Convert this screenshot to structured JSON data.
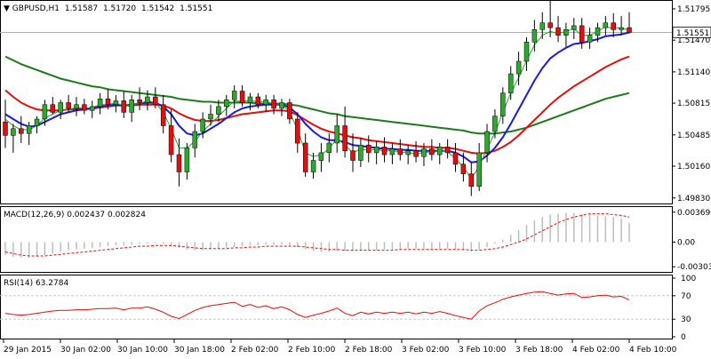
{
  "header": {
    "symbol": "GBPUSD,H1",
    "open": "1.51587",
    "high": "1.51720",
    "low": "1.51542",
    "close": "1.51551"
  },
  "price_tag": "1.51551",
  "macd_panel": {
    "title": "MACD(12,26,9) 0.002437 0.002824"
  },
  "rsi_panel": {
    "title": "RSI(14) 63.2784"
  },
  "colors": {
    "bull": "#2fa82f",
    "bear": "#e01010",
    "wick": "#000000",
    "ma_fast": "#1a1adc",
    "ma_mid": "#e01010",
    "ma_slow": "#1f7a1f",
    "ma_thin": "#27a327",
    "macd_hist": "#bdbdbd",
    "macd_signal": "#e01010",
    "rsi": "#e01010",
    "grid": "#c8c8c8"
  },
  "chart_data": [
    {
      "type": "candlestick",
      "title": "GBPUSD,H1",
      "ylim": [
        1.498,
        1.5185
      ],
      "y_ticks": [
        "1.51795",
        "1.51470",
        "1.51140",
        "1.50815",
        "1.50485",
        "1.50160",
        "1.49830"
      ],
      "x_ticks": [
        "29 Jan 2015",
        "30 Jan 02:00",
        "30 Jan 10:00",
        "30 Jan 18:00",
        "2 Feb 02:00",
        "2 Feb 10:00",
        "2 Feb 18:00",
        "3 Feb 02:00",
        "3 Feb 10:00",
        "3 Feb 18:00",
        "4 Feb 02:00",
        "4 Feb 10:00"
      ],
      "grid": false,
      "ohlc": [
        [
          1.5062,
          1.5085,
          1.5035,
          1.5048
        ],
        [
          1.5048,
          1.506,
          1.503,
          1.5055
        ],
        [
          1.5055,
          1.5068,
          1.504,
          1.505
        ],
        [
          1.505,
          1.5062,
          1.5038,
          1.5058
        ],
        [
          1.5058,
          1.5068,
          1.505,
          1.5065
        ],
        [
          1.5065,
          1.5085,
          1.5058,
          1.508
        ],
        [
          1.508,
          1.5088,
          1.507,
          1.5072
        ],
        [
          1.5072,
          1.5085,
          1.5065,
          1.5082
        ],
        [
          1.5082,
          1.509,
          1.5072,
          1.5076
        ],
        [
          1.5076,
          1.5088,
          1.5068,
          1.508
        ],
        [
          1.508,
          1.5086,
          1.507,
          1.5074
        ],
        [
          1.5074,
          1.5084,
          1.5066,
          1.5078
        ],
        [
          1.5078,
          1.5092,
          1.507,
          1.5086
        ],
        [
          1.5086,
          1.5096,
          1.5075,
          1.508
        ],
        [
          1.508,
          1.509,
          1.5072,
          1.5084
        ],
        [
          1.5084,
          1.5094,
          1.5066,
          1.5072
        ],
        [
          1.5072,
          1.509,
          1.5062,
          1.5085
        ],
        [
          1.5085,
          1.5098,
          1.5074,
          1.5082
        ],
        [
          1.5082,
          1.5095,
          1.5074,
          1.5088
        ],
        [
          1.5088,
          1.5098,
          1.5076,
          1.508
        ],
        [
          1.508,
          1.509,
          1.505,
          1.5058
        ],
        [
          1.5058,
          1.5075,
          1.502,
          1.5028
        ],
        [
          1.5028,
          1.5045,
          1.4995,
          1.501
        ],
        [
          1.501,
          1.504,
          1.5002,
          1.5035
        ],
        [
          1.5035,
          1.506,
          1.5025,
          1.5052
        ],
        [
          1.5052,
          1.5072,
          1.5045,
          1.5065
        ],
        [
          1.5065,
          1.508,
          1.5058,
          1.507
        ],
        [
          1.507,
          1.5085,
          1.5062,
          1.5078
        ],
        [
          1.5078,
          1.509,
          1.5068,
          1.5085
        ],
        [
          1.5085,
          1.51,
          1.5076,
          1.5094
        ],
        [
          1.5094,
          1.51,
          1.5078,
          1.5082
        ],
        [
          1.5082,
          1.5092,
          1.5074,
          1.5088
        ],
        [
          1.5088,
          1.5092,
          1.5076,
          1.508
        ],
        [
          1.508,
          1.509,
          1.5072,
          1.5085
        ],
        [
          1.5085,
          1.509,
          1.507,
          1.5076
        ],
        [
          1.5076,
          1.5086,
          1.5068,
          1.5082
        ],
        [
          1.5082,
          1.5086,
          1.506,
          1.5065
        ],
        [
          1.5065,
          1.5072,
          1.503,
          1.504
        ],
        [
          1.504,
          1.505,
          1.5005,
          1.501
        ],
        [
          1.501,
          1.503,
          1.5003,
          1.5022
        ],
        [
          1.5022,
          1.504,
          1.501,
          1.503
        ],
        [
          1.503,
          1.505,
          1.502,
          1.504
        ],
        [
          1.504,
          1.507,
          1.503,
          1.5058
        ],
        [
          1.5058,
          1.5078,
          1.5025,
          1.5032
        ],
        [
          1.5032,
          1.505,
          1.501,
          1.5022
        ],
        [
          1.5022,
          1.5045,
          1.5015,
          1.5038
        ],
        [
          1.5038,
          1.5048,
          1.502,
          1.503
        ],
        [
          1.503,
          1.5042,
          1.5018,
          1.5036
        ],
        [
          1.5036,
          1.5046,
          1.502,
          1.5028
        ],
        [
          1.5028,
          1.504,
          1.5018,
          1.5034
        ],
        [
          1.5034,
          1.5044,
          1.5022,
          1.5028
        ],
        [
          1.5028,
          1.5038,
          1.5018,
          1.5032
        ],
        [
          1.5032,
          1.5042,
          1.502,
          1.5026
        ],
        [
          1.5026,
          1.504,
          1.5016,
          1.5034
        ],
        [
          1.5034,
          1.5044,
          1.5022,
          1.5028
        ],
        [
          1.5028,
          1.504,
          1.5018,
          1.5036
        ],
        [
          1.5036,
          1.5044,
          1.5024,
          1.503
        ],
        [
          1.503,
          1.504,
          1.501,
          1.5018
        ],
        [
          1.5018,
          1.503,
          1.5,
          1.5008
        ],
        [
          1.5008,
          1.502,
          1.4985,
          1.4995
        ],
        [
          1.4995,
          1.504,
          1.499,
          1.503
        ],
        [
          1.503,
          1.506,
          1.502,
          1.5052
        ],
        [
          1.5052,
          1.5075,
          1.5045,
          1.5068
        ],
        [
          1.5068,
          1.5098,
          1.506,
          1.5092
        ],
        [
          1.5092,
          1.512,
          1.5085,
          1.5112
        ],
        [
          1.5112,
          1.5135,
          1.51,
          1.5125
        ],
        [
          1.5125,
          1.515,
          1.5115,
          1.5145
        ],
        [
          1.5145,
          1.5168,
          1.5135,
          1.5158
        ],
        [
          1.5158,
          1.5176,
          1.5148,
          1.5165
        ],
        [
          1.5165,
          1.519,
          1.515,
          1.516
        ],
        [
          1.516,
          1.5172,
          1.5145,
          1.5152
        ],
        [
          1.5152,
          1.5165,
          1.514,
          1.5158
        ],
        [
          1.5158,
          1.517,
          1.5148,
          1.5162
        ],
        [
          1.5162,
          1.517,
          1.5138,
          1.5145
        ],
        [
          1.5145,
          1.516,
          1.5138,
          1.5152
        ],
        [
          1.5152,
          1.5165,
          1.5145,
          1.516
        ],
        [
          1.516,
          1.5172,
          1.5152,
          1.5165
        ],
        [
          1.5165,
          1.5175,
          1.515,
          1.5158
        ],
        [
          1.5158,
          1.5172,
          1.5152,
          1.516
        ],
        [
          1.516,
          1.5176,
          1.5154,
          1.5155
        ]
      ],
      "ma_fast": [
        1.507,
        1.5065,
        1.506,
        1.5057,
        1.5058,
        1.5062,
        1.5066,
        1.507,
        1.5072,
        1.5074,
        1.5075,
        1.5076,
        1.5078,
        1.5079,
        1.508,
        1.5079,
        1.508,
        1.5081,
        1.5082,
        1.5082,
        1.5078,
        1.507,
        1.5058,
        1.505,
        1.5048,
        1.505,
        1.5055,
        1.506,
        1.5066,
        1.5072,
        1.5076,
        1.5078,
        1.5079,
        1.508,
        1.508,
        1.508,
        1.5077,
        1.507,
        1.506,
        1.5052,
        1.5046,
        1.5043,
        1.5043,
        1.5041,
        1.5038,
        1.5037,
        1.5036,
        1.5035,
        1.5034,
        1.5034,
        1.5033,
        1.5033,
        1.5032,
        1.5032,
        1.5032,
        1.5032,
        1.5032,
        1.503,
        1.5026,
        1.502,
        1.5021,
        1.5027,
        1.5035,
        1.5046,
        1.506,
        1.5075,
        1.509,
        1.5105,
        1.5118,
        1.5128,
        1.5134,
        1.5139,
        1.5143,
        1.5144,
        1.5146,
        1.5148,
        1.5151,
        1.5152,
        1.5153,
        1.5155
      ],
      "ma_thin": [
        1.5065,
        1.5058,
        1.5054,
        1.5054,
        1.5058,
        1.5066,
        1.507,
        1.5074,
        1.5075,
        1.5077,
        1.5076,
        1.5077,
        1.508,
        1.508,
        1.5082,
        1.5078,
        1.508,
        1.5081,
        1.5084,
        1.5082,
        1.5072,
        1.5055,
        1.5035,
        1.5035,
        1.5042,
        1.5052,
        1.506,
        1.5068,
        1.5076,
        1.5084,
        1.5083,
        1.5085,
        1.5082,
        1.5084,
        1.508,
        1.5081,
        1.5072,
        1.5054,
        1.503,
        1.5026,
        1.5028,
        1.5034,
        1.5045,
        1.5038,
        1.503,
        1.5034,
        1.5032,
        1.5034,
        1.5031,
        1.5033,
        1.503,
        1.5031,
        1.5028,
        1.5031,
        1.5029,
        1.5033,
        1.5031,
        1.5024,
        1.5015,
        1.5003,
        1.5016,
        1.5034,
        1.5051,
        1.5072,
        1.5092,
        1.5108,
        1.5126,
        1.5142,
        1.5152,
        1.5156,
        1.5154,
        1.5156,
        1.5159,
        1.5152,
        1.5152,
        1.5156,
        1.5161,
        1.5159,
        1.516,
        1.5157
      ],
      "ma_mid": [
        1.5095,
        1.5088,
        1.5082,
        1.5078,
        1.5075,
        1.5074,
        1.5074,
        1.5074,
        1.5075,
        1.5075,
        1.5076,
        1.5076,
        1.5077,
        1.5078,
        1.5079,
        1.5079,
        1.5079,
        1.508,
        1.508,
        1.508,
        1.5079,
        1.5076,
        1.5071,
        1.5067,
        1.5064,
        1.5063,
        1.5063,
        1.5064,
        1.5066,
        1.5068,
        1.507,
        1.5071,
        1.5072,
        1.5073,
        1.5074,
        1.5074,
        1.5073,
        1.5069,
        1.5064,
        1.5059,
        1.5055,
        1.5052,
        1.505,
        1.5048,
        1.5046,
        1.5045,
        1.5043,
        1.5042,
        1.5041,
        1.504,
        1.5039,
        1.5038,
        1.5037,
        1.5036,
        1.5036,
        1.5035,
        1.5035,
        1.5034,
        1.5032,
        1.503,
        1.5029,
        1.503,
        1.5032,
        1.5036,
        1.5041,
        1.5048,
        1.5056,
        1.5064,
        1.5072,
        1.508,
        1.5087,
        1.5093,
        1.5099,
        1.5104,
        1.5109,
        1.5114,
        1.5119,
        1.5123,
        1.5127,
        1.513
      ],
      "ma_slow": [
        1.513,
        1.5126,
        1.5122,
        1.5119,
        1.5116,
        1.5113,
        1.511,
        1.5107,
        1.5105,
        1.5103,
        1.5101,
        1.5099,
        1.5098,
        1.5096,
        1.5095,
        1.5094,
        1.5093,
        1.5092,
        1.5091,
        1.509,
        1.5089,
        1.5088,
        1.5086,
        1.5085,
        1.5084,
        1.5083,
        1.5083,
        1.5082,
        1.5082,
        1.5082,
        1.5082,
        1.5082,
        1.5081,
        1.5081,
        1.5081,
        1.5081,
        1.508,
        1.5079,
        1.5077,
        1.5075,
        1.5073,
        1.5071,
        1.507,
        1.5068,
        1.5067,
        1.5066,
        1.5065,
        1.5064,
        1.5063,
        1.5062,
        1.5061,
        1.506,
        1.5059,
        1.5058,
        1.5057,
        1.5056,
        1.5055,
        1.5054,
        1.5053,
        1.5051,
        1.505,
        1.505,
        1.505,
        1.5051,
        1.5052,
        1.5054,
        1.5056,
        1.5059,
        1.5062,
        1.5065,
        1.5068,
        1.5071,
        1.5074,
        1.5077,
        1.508,
        1.5083,
        1.5086,
        1.5088,
        1.509,
        1.5092
      ]
    },
    {
      "type": "bar",
      "title": "MACD(12,26,9) 0.002437 0.002824",
      "ylim": [
        -0.00345,
        0.004
      ],
      "y_ticks": [
        "0.003694",
        "0.00",
        "-0.003034"
      ],
      "histogram": [
        -0.0016,
        -0.0018,
        -0.0019,
        -0.0019,
        -0.0018,
        -0.0016,
        -0.0014,
        -0.0012,
        -0.001,
        -0.0009,
        -0.0008,
        -0.0007,
        -0.0006,
        -0.0005,
        -0.0004,
        -0.0004,
        -0.0003,
        -0.0002,
        -0.0002,
        -0.0001,
        -0.0002,
        -0.0004,
        -0.0007,
        -0.0009,
        -0.001,
        -0.001,
        -0.0009,
        -0.0008,
        -0.0007,
        -0.0006,
        -0.0005,
        -0.0004,
        -0.0004,
        -0.0003,
        -0.0003,
        -0.0003,
        -0.0004,
        -0.0006,
        -0.0009,
        -0.0011,
        -0.0012,
        -0.0012,
        -0.0011,
        -0.0011,
        -0.0011,
        -0.001,
        -0.001,
        -0.001,
        -0.0009,
        -0.0009,
        -0.0009,
        -0.0008,
        -0.0008,
        -0.0008,
        -0.0008,
        -0.0008,
        -0.0008,
        -0.0009,
        -0.001,
        -0.0011,
        -0.0009,
        -0.0006,
        -0.0002,
        0.0003,
        0.0009,
        0.0015,
        0.0021,
        0.0027,
        0.0031,
        0.0034,
        0.0035,
        0.0036,
        0.0036,
        0.0035,
        0.0034,
        0.0033,
        0.0032,
        0.0031,
        0.0029,
        0.0024
      ],
      "signal": [
        -0.0012,
        -0.0014,
        -0.0016,
        -0.0017,
        -0.0017,
        -0.0017,
        -0.0016,
        -0.0015,
        -0.0014,
        -0.0013,
        -0.0012,
        -0.0011,
        -0.001,
        -0.0009,
        -0.0008,
        -0.0007,
        -0.0006,
        -0.0005,
        -0.0005,
        -0.0004,
        -0.0004,
        -0.0004,
        -0.0005,
        -0.0006,
        -0.0007,
        -0.0008,
        -0.0008,
        -0.0008,
        -0.0008,
        -0.0007,
        -0.0007,
        -0.0006,
        -0.0006,
        -0.0005,
        -0.0005,
        -0.0005,
        -0.0005,
        -0.0005,
        -0.0006,
        -0.0007,
        -0.0008,
        -0.0009,
        -0.0009,
        -0.001,
        -0.001,
        -0.001,
        -0.001,
        -0.001,
        -0.001,
        -0.001,
        -0.0009,
        -0.0009,
        -0.0009,
        -0.0009,
        -0.0009,
        -0.0009,
        -0.0009,
        -0.0009,
        -0.0009,
        -0.001,
        -0.001,
        -0.0009,
        -0.0008,
        -0.0006,
        -0.0003,
        0.0,
        0.0004,
        0.0009,
        0.0014,
        0.0019,
        0.0024,
        0.0028,
        0.0031,
        0.0033,
        0.0035,
        0.0035,
        0.0035,
        0.0034,
        0.0033,
        0.0031
      ]
    },
    {
      "type": "line",
      "title": "RSI(14) 63.2784",
      "ylim": [
        0,
        100
      ],
      "y_ticks": [
        "100",
        "70",
        "30",
        "0"
      ],
      "levels": [
        70,
        30
      ],
      "values": [
        40,
        38,
        37,
        38,
        40,
        42,
        44,
        45,
        45,
        46,
        46,
        47,
        48,
        48,
        49,
        46,
        49,
        49,
        51,
        47,
        42,
        35,
        31,
        38,
        45,
        50,
        53,
        55,
        57,
        59,
        52,
        55,
        50,
        53,
        48,
        51,
        46,
        38,
        33,
        37,
        40,
        44,
        49,
        40,
        36,
        42,
        39,
        42,
        40,
        42,
        40,
        42,
        39,
        42,
        40,
        43,
        40,
        36,
        33,
        30,
        44,
        53,
        58,
        64,
        68,
        71,
        74,
        76,
        77,
        74,
        71,
        73,
        74,
        67,
        68,
        70,
        71,
        68,
        69,
        63
      ]
    }
  ]
}
